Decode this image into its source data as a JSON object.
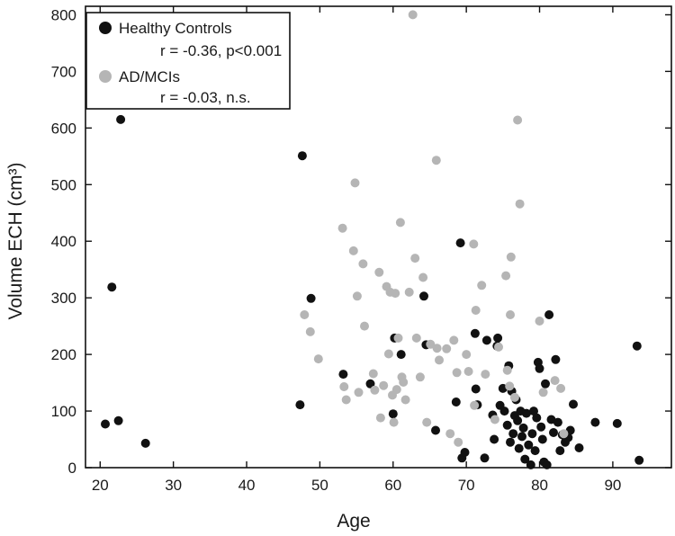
{
  "chart_data": {
    "type": "scatter",
    "xlabel": "Age",
    "ylabel": "Volume ECH (cm³)",
    "xlim": [
      18,
      98
    ],
    "ylim": [
      0,
      815
    ],
    "xticks": [
      20,
      30,
      40,
      50,
      60,
      70,
      80,
      90
    ],
    "yticks": [
      0,
      100,
      200,
      300,
      400,
      500,
      600,
      700,
      800
    ],
    "legend_position": "top-left",
    "series": [
      {
        "name": "Healthy Controls",
        "stat": "r = -0.36, p<0.001",
        "color": "#111111",
        "points": [
          [
            20.7,
            77
          ],
          [
            21.6,
            319
          ],
          [
            22.5,
            83
          ],
          [
            22.8,
            615
          ],
          [
            26.2,
            43
          ],
          [
            47.3,
            111
          ],
          [
            47.6,
            551
          ],
          [
            48.8,
            299
          ],
          [
            53.2,
            165
          ],
          [
            56.9,
            148
          ],
          [
            60.0,
            95
          ],
          [
            60.2,
            229
          ],
          [
            61.1,
            200
          ],
          [
            64.2,
            303
          ],
          [
            64.5,
            217
          ],
          [
            65.8,
            66
          ],
          [
            68.6,
            116
          ],
          [
            69.2,
            397
          ],
          [
            69.4,
            17
          ],
          [
            69.8,
            27
          ],
          [
            71.2,
            237
          ],
          [
            71.3,
            139
          ],
          [
            71.5,
            111
          ],
          [
            72.5,
            17
          ],
          [
            72.8,
            225
          ],
          [
            73.6,
            93
          ],
          [
            73.8,
            50
          ],
          [
            74.2,
            215
          ],
          [
            74.3,
            229
          ],
          [
            74.6,
            110
          ],
          [
            75.0,
            140
          ],
          [
            75.2,
            100
          ],
          [
            75.6,
            75
          ],
          [
            75.8,
            180
          ],
          [
            76.0,
            45
          ],
          [
            76.2,
            135
          ],
          [
            76.4,
            60
          ],
          [
            76.6,
            92
          ],
          [
            76.8,
            120
          ],
          [
            77.0,
            83
          ],
          [
            77.2,
            34
          ],
          [
            77.4,
            100
          ],
          [
            77.6,
            55
          ],
          [
            77.8,
            70
          ],
          [
            78.0,
            15
          ],
          [
            78.2,
            96
          ],
          [
            78.5,
            40
          ],
          [
            78.8,
            5
          ],
          [
            79.0,
            60
          ],
          [
            79.2,
            100
          ],
          [
            79.4,
            30
          ],
          [
            79.6,
            88
          ],
          [
            79.8,
            186
          ],
          [
            80.0,
            175
          ],
          [
            80.2,
            72
          ],
          [
            80.4,
            50
          ],
          [
            80.6,
            10
          ],
          [
            80.8,
            148
          ],
          [
            81.0,
            5
          ],
          [
            81.3,
            270
          ],
          [
            81.6,
            85
          ],
          [
            81.9,
            62
          ],
          [
            82.2,
            191
          ],
          [
            82.5,
            80
          ],
          [
            82.8,
            30
          ],
          [
            83.1,
            58
          ],
          [
            83.5,
            45
          ],
          [
            83.9,
            53
          ],
          [
            84.2,
            66
          ],
          [
            84.6,
            112
          ],
          [
            85.4,
            35
          ],
          [
            87.6,
            80
          ],
          [
            90.6,
            78
          ],
          [
            93.3,
            215
          ],
          [
            93.6,
            13
          ]
        ]
      },
      {
        "name": "AD/MCIs",
        "stat": "r = -0.03, n.s.",
        "color": "#b5b5b5",
        "points": [
          [
            47.9,
            270
          ],
          [
            48.7,
            240
          ],
          [
            49.8,
            192
          ],
          [
            53.1,
            423
          ],
          [
            53.3,
            143
          ],
          [
            53.6,
            120
          ],
          [
            54.6,
            383
          ],
          [
            54.8,
            503
          ],
          [
            55.1,
            303
          ],
          [
            55.3,
            133
          ],
          [
            55.9,
            360
          ],
          [
            56.1,
            250
          ],
          [
            57.3,
            166
          ],
          [
            57.5,
            137
          ],
          [
            58.1,
            345
          ],
          [
            58.3,
            88
          ],
          [
            58.7,
            145
          ],
          [
            59.1,
            320
          ],
          [
            59.4,
            201
          ],
          [
            59.6,
            310
          ],
          [
            59.9,
            128
          ],
          [
            60.1,
            80
          ],
          [
            60.3,
            308
          ],
          [
            60.5,
            138
          ],
          [
            60.7,
            229
          ],
          [
            61.0,
            433
          ],
          [
            61.2,
            160
          ],
          [
            61.4,
            151
          ],
          [
            61.7,
            120
          ],
          [
            62.2,
            310
          ],
          [
            62.7,
            800
          ],
          [
            63.0,
            370
          ],
          [
            63.2,
            229
          ],
          [
            63.7,
            160
          ],
          [
            64.1,
            336
          ],
          [
            64.6,
            80
          ],
          [
            65.1,
            218
          ],
          [
            65.9,
            543
          ],
          [
            66.0,
            211
          ],
          [
            66.3,
            190
          ],
          [
            67.3,
            210
          ],
          [
            67.8,
            60
          ],
          [
            68.3,
            225
          ],
          [
            68.7,
            168
          ],
          [
            68.9,
            45
          ],
          [
            70.0,
            200
          ],
          [
            70.3,
            170
          ],
          [
            71.0,
            395
          ],
          [
            71.1,
            110
          ],
          [
            71.3,
            278
          ],
          [
            72.1,
            322
          ],
          [
            72.6,
            165
          ],
          [
            73.9,
            85
          ],
          [
            74.4,
            213
          ],
          [
            75.4,
            339
          ],
          [
            75.6,
            172
          ],
          [
            75.9,
            144
          ],
          [
            76.0,
            270
          ],
          [
            76.1,
            372
          ],
          [
            76.6,
            124
          ],
          [
            77.0,
            614
          ],
          [
            77.3,
            466
          ],
          [
            80.0,
            259
          ],
          [
            80.5,
            133
          ],
          [
            82.1,
            154
          ],
          [
            82.9,
            140
          ],
          [
            83.3,
            60
          ]
        ]
      }
    ]
  }
}
